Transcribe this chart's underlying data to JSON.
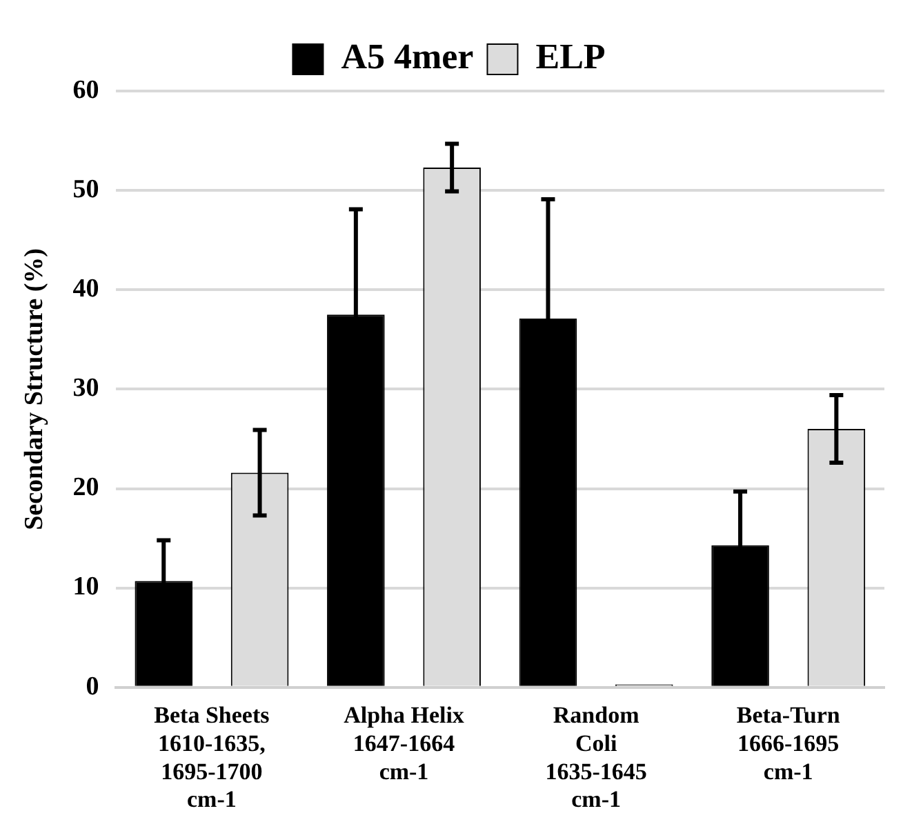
{
  "chart_data": {
    "type": "bar",
    "ylabel": "Secondary Structure (%)",
    "categories": [
      "Beta Sheets\n1610-1635,\n1695-1700\ncm-1",
      "Alpha Helix\n1647-1664\ncm-1",
      "Random\nColi\n1635-1645\ncm-1",
      "Beta-Turn\n1666-1695\ncm-1"
    ],
    "series": [
      {
        "name": "A5 4mer",
        "color": "#000000",
        "values": [
          10.7,
          37.5,
          37.1,
          14.3
        ],
        "errors": [
          4.1,
          10.6,
          12,
          5.4
        ]
      },
      {
        "name": "ELP",
        "color": "#dcdcdc",
        "values": [
          21.6,
          52.3,
          0.3,
          26.0
        ],
        "errors": [
          4.3,
          2.4,
          null,
          3.4
        ]
      }
    ],
    "ylim": [
      0,
      60
    ],
    "yticks": [
      0,
      10,
      20,
      30,
      40,
      50,
      60
    ],
    "grid": "y",
    "legend": "top"
  }
}
